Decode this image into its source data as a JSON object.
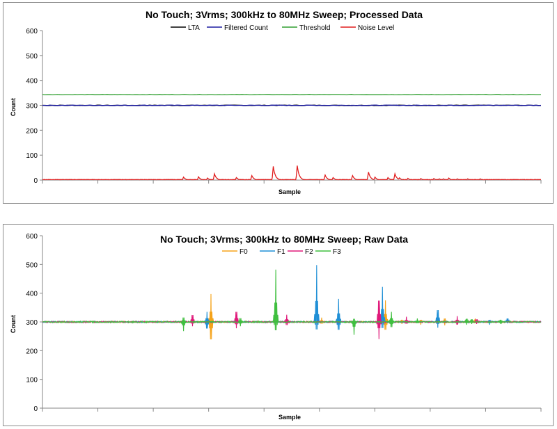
{
  "charts": [
    {
      "title": "No Touch; 3Vrms; 300kHz to 80MHz Sweep; Processed Data",
      "xlabel": "Sample",
      "ylabel": "Count",
      "legend": [
        {
          "name": "LTA",
          "color": "#000000"
        },
        {
          "name": "Filtered Count",
          "color": "#1a1aa0"
        },
        {
          "name": "Threshold",
          "color": "#2e9e2e"
        },
        {
          "name": "Noise Level",
          "color": "#e01b1b"
        }
      ]
    },
    {
      "title": "No Touch; 3Vrms; 300kHz to 80MHz Sweep; Raw Data",
      "xlabel": "Sample",
      "ylabel": "Count",
      "legend": [
        {
          "name": "F0",
          "color": "#f5a31a"
        },
        {
          "name": "F1",
          "color": "#1f8fd6"
        },
        {
          "name": "F2",
          "color": "#e0197a"
        },
        {
          "name": "F3",
          "color": "#3fbf3f"
        }
      ]
    }
  ],
  "chart_data": [
    {
      "type": "line",
      "title": "No Touch; 3Vrms; 300kHz to 80MHz Sweep; Processed Data",
      "xlabel": "Sample",
      "ylabel": "Count",
      "ylim": [
        0,
        600
      ],
      "yticks": [
        0,
        100,
        200,
        300,
        400,
        500,
        600
      ],
      "xlim": [
        0,
        1000
      ],
      "grid": false,
      "legend_position": "top",
      "series": [
        {
          "name": "LTA",
          "color": "#000000",
          "x": [
            0,
            1000
          ],
          "values": [
            300,
            300
          ]
        },
        {
          "name": "Filtered Count",
          "color": "#1a1aa0",
          "x": [
            0,
            1000
          ],
          "values": [
            300,
            300
          ]
        },
        {
          "name": "Threshold",
          "color": "#2e9e2e",
          "x": [
            0,
            1000
          ],
          "values": [
            343,
            343
          ]
        },
        {
          "name": "Noise Level",
          "color": "#e01b1b",
          "baseline": 2,
          "spikes": [
            [
              283,
              12
            ],
            [
              313,
              13
            ],
            [
              331,
              8
            ],
            [
              345,
              25
            ],
            [
              389,
              10
            ],
            [
              420,
              18
            ],
            [
              463,
              55
            ],
            [
              511,
              58
            ],
            [
              567,
              20
            ],
            [
              583,
              10
            ],
            [
              622,
              18
            ],
            [
              654,
              32
            ],
            [
              667,
              12
            ],
            [
              693,
              10
            ],
            [
              716,
              9
            ],
            [
              733,
              7
            ],
            [
              759,
              6
            ],
            [
              785,
              6
            ],
            [
              796,
              5
            ],
            [
              804,
              5
            ],
            [
              815,
              8
            ],
            [
              832,
              5
            ],
            [
              853,
              5
            ]
          ],
          "spikes_extra": [
            [
              707,
              25
            ],
            [
              878,
              5
            ]
          ]
        }
      ]
    },
    {
      "type": "line",
      "title": "No Touch; 3Vrms; 300kHz to 80MHz Sweep; Raw Data",
      "xlabel": "Sample",
      "ylabel": "Count",
      "ylim": [
        0,
        600
      ],
      "yticks": [
        0,
        100,
        200,
        300,
        400,
        500,
        600
      ],
      "xlim": [
        0,
        1000
      ],
      "grid": false,
      "legend_position": "top",
      "series": [
        {
          "name": "F0",
          "color": "#f5a31a",
          "baseline": 300,
          "spikes": [
            [
              338,
              397,
              200
            ],
            [
              560,
              315,
              290
            ],
            [
              688,
              375,
              255
            ],
            [
              721,
              312,
              293
            ],
            [
              759,
              312,
              290
            ],
            [
              807,
              320,
              288
            ],
            [
              868,
              312,
              293
            ]
          ]
        },
        {
          "name": "F1",
          "color": "#1f8fd6",
          "baseline": 300,
          "spikes": [
            [
              330,
              335,
              262
            ],
            [
              550,
              498,
              257
            ],
            [
              594,
              380,
              255
            ],
            [
              682,
              422,
              265
            ],
            [
              793,
              368,
              280
            ],
            [
              897,
              312,
              290
            ],
            [
              933,
              320,
              295
            ]
          ]
        },
        {
          "name": "F2",
          "color": "#e0197a",
          "baseline": 300,
          "spikes": [
            [
              301,
              340,
              285
            ],
            [
              389,
              358,
              278
            ],
            [
              490,
              325,
              282
            ],
            [
              675,
              422,
              240
            ],
            [
              730,
              318,
              290
            ],
            [
              832,
              320,
              285
            ],
            [
              871,
              315,
              293
            ]
          ]
        },
        {
          "name": "F3",
          "color": "#3fbf3f",
          "baseline": 300,
          "spikes": [
            [
              283,
              325,
              268
            ],
            [
              397,
              322,
              285
            ],
            [
              468,
              482,
              252
            ],
            [
              625,
              318,
              255
            ],
            [
              700,
              335,
              270
            ],
            [
              752,
              312,
              293
            ],
            [
              851,
              318,
              290
            ],
            [
              861,
              315,
              293
            ],
            [
              919,
              312,
              293
            ]
          ]
        }
      ]
    }
  ]
}
